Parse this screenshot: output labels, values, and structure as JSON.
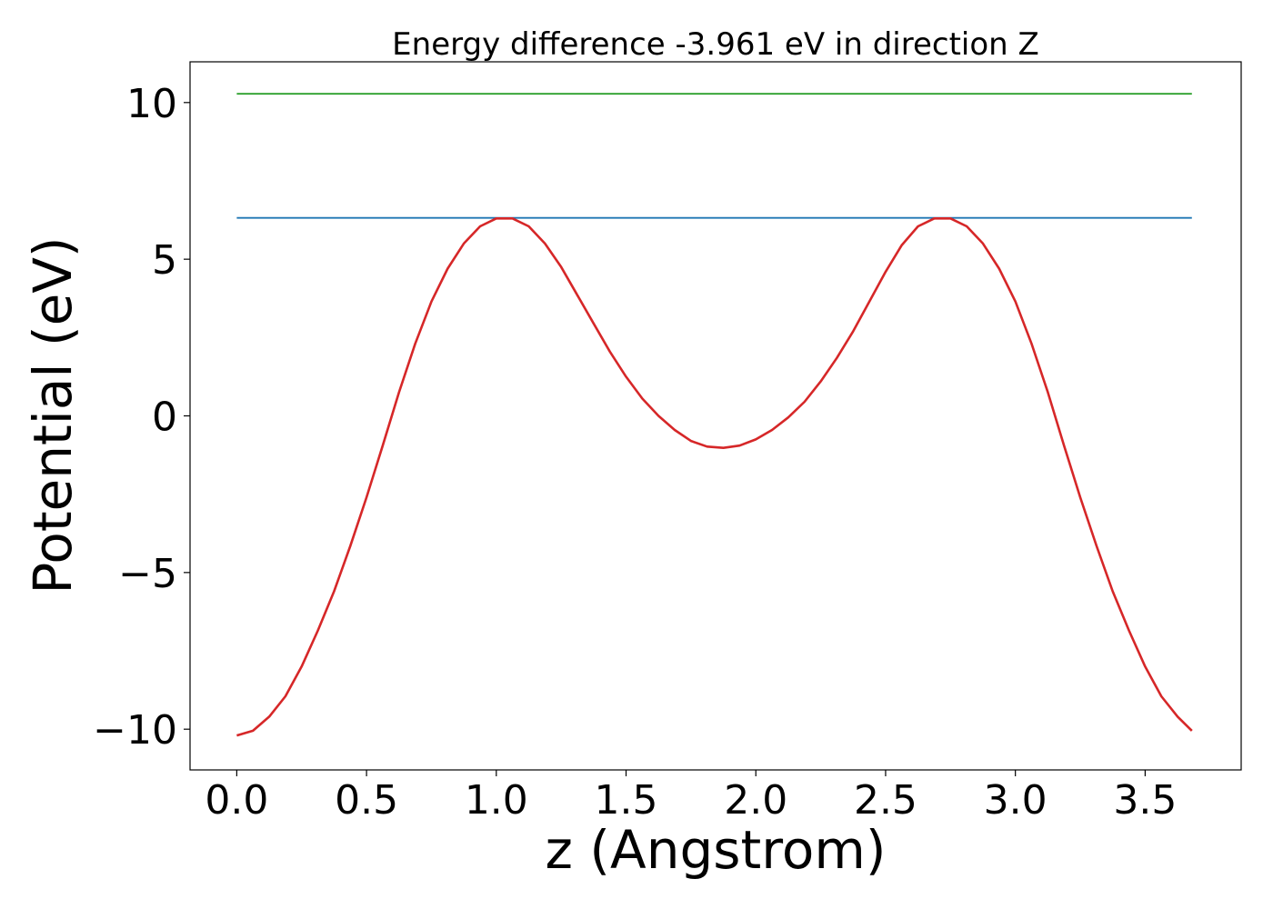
{
  "chart_data": {
    "type": "line",
    "title": "Energy difference -3.961 eV in direction Z",
    "xlabel": "z (Angstrom)",
    "ylabel": "Potential (eV)",
    "xlim": [
      -0.18,
      3.87
    ],
    "ylim": [
      -11.3,
      11.3
    ],
    "xticks": [
      0.0,
      0.5,
      1.0,
      1.5,
      2.0,
      2.5,
      3.0,
      3.5
    ],
    "xtick_labels": [
      "0.0",
      "0.5",
      "1.0",
      "1.5",
      "2.0",
      "2.5",
      "3.0",
      "3.5"
    ],
    "yticks": [
      -10,
      -5,
      0,
      5,
      10
    ],
    "ytick_labels": [
      "−10",
      "−5",
      "0",
      "5",
      "10"
    ],
    "grid": false,
    "legend": "none",
    "series": [
      {
        "color": "#2ca02c",
        "x": [
          0.0,
          3.68
        ],
        "y": [
          10.28,
          10.28
        ]
      },
      {
        "color": "#1f77b4",
        "x": [
          0.0,
          3.68
        ],
        "y": [
          6.32,
          6.32
        ]
      },
      {
        "color": "#d62728",
        "x": [
          0.0,
          0.0625,
          0.125,
          0.1875,
          0.25,
          0.3125,
          0.375,
          0.4375,
          0.5,
          0.5625,
          0.625,
          0.6875,
          0.75,
          0.8125,
          0.875,
          0.9375,
          1.0,
          1.0625,
          1.125,
          1.1875,
          1.25,
          1.3125,
          1.375,
          1.4375,
          1.5,
          1.5625,
          1.625,
          1.6875,
          1.75,
          1.8125,
          1.875,
          1.9375,
          2.0,
          2.0625,
          2.125,
          2.1875,
          2.25,
          2.3125,
          2.375,
          2.4375,
          2.5,
          2.5625,
          2.625,
          2.6875,
          2.75,
          2.8125,
          2.875,
          2.9375,
          3.0,
          3.0625,
          3.125,
          3.1875,
          3.25,
          3.3125,
          3.375,
          3.4375,
          3.5,
          3.5625,
          3.625,
          3.68
        ],
        "y": [
          -10.2,
          -10.05,
          -9.6,
          -8.95,
          -8.0,
          -6.85,
          -5.6,
          -4.15,
          -2.6,
          -0.95,
          0.75,
          2.3,
          3.65,
          4.7,
          5.5,
          6.05,
          6.3,
          6.3,
          6.05,
          5.5,
          4.75,
          3.85,
          2.95,
          2.05,
          1.25,
          0.55,
          0.0,
          -0.45,
          -0.8,
          -0.98,
          -1.02,
          -0.95,
          -0.75,
          -0.45,
          -0.05,
          0.45,
          1.1,
          1.85,
          2.7,
          3.65,
          4.6,
          5.45,
          6.05,
          6.3,
          6.3,
          6.05,
          5.5,
          4.7,
          3.65,
          2.3,
          0.75,
          -0.95,
          -2.6,
          -4.15,
          -5.6,
          -6.85,
          -8.0,
          -8.95,
          -9.6,
          -10.05
        ]
      }
    ]
  }
}
